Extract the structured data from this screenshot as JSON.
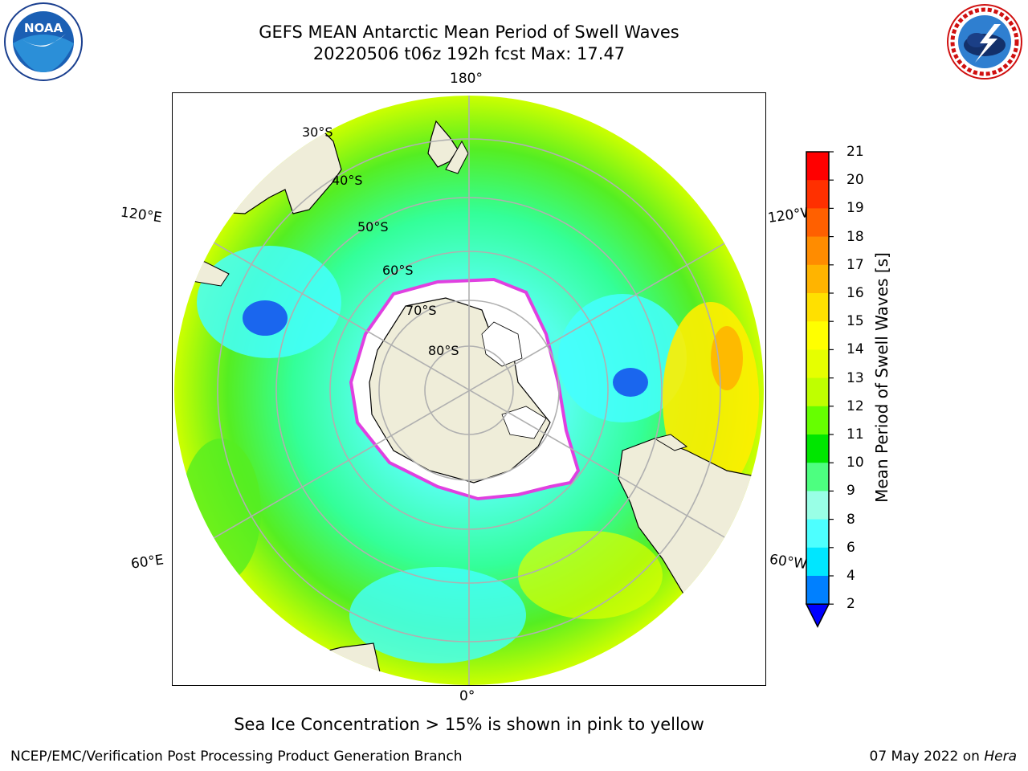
{
  "header": {
    "title_line1": "GEFS MEAN Antarctic Mean Period of Swell Waves",
    "title_line2": "20220506 t06z 192h fcst   Max: 17.47"
  },
  "logos": {
    "left": {
      "icon": "noaa-logo-icon",
      "text": "NOAA",
      "ring_text": "NATIONAL OCEANIC AND ATMOSPHERIC ADMINISTRATION · U.S. DEPARTMENT OF COMMERCE"
    },
    "right": {
      "icon": "nws-logo-icon",
      "ring_text": "NATIONAL WEATHER SERVICE"
    }
  },
  "map": {
    "projection": "south-polar-stereographic",
    "longitude_labels": {
      "top": "180°",
      "bottom": "0°",
      "left_upper": "120°E",
      "left_lower": "60°E",
      "right_upper": "120°W",
      "right_lower": "60°W"
    },
    "latitude_labels": [
      "30°S",
      "40°S",
      "50°S",
      "60°S",
      "70°S",
      "80°S"
    ],
    "colors": {
      "land": "#efedd9",
      "ice": "#ffffff",
      "ice_edge": "#e040e0",
      "grid": "#b0b0b0"
    }
  },
  "colorbar": {
    "title": "Mean Period of Swell Waves [s]",
    "ticks": [
      "21",
      "20",
      "19",
      "18",
      "17",
      "16",
      "15",
      "14",
      "13",
      "12",
      "11",
      "10",
      "9",
      "8",
      "6",
      "4",
      "2"
    ],
    "colors": [
      "#ff0000",
      "#ff3000",
      "#ff6000",
      "#ff8c00",
      "#ffb400",
      "#ffe000",
      "#ffff00",
      "#e6ff00",
      "#bfff00",
      "#66ff00",
      "#00e600",
      "#4dff80",
      "#99ffe6",
      "#4dffff",
      "#00e6ff",
      "#0080ff",
      "#0000ff"
    ]
  },
  "note": "Sea Ice Concentration > 15% is shown in pink to yellow",
  "footer": {
    "left": "NCEP/EMC/Verification Post Processing Product Generation Branch",
    "right_prefix": "07 May 2022 on ",
    "right_machine": "Hera"
  }
}
